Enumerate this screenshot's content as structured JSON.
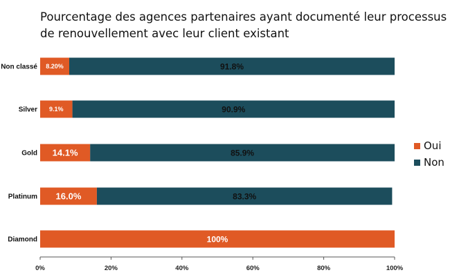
{
  "chart_data": {
    "type": "bar",
    "orientation": "horizontal",
    "stacked": true,
    "title_lines": [
      "Pourcentage des agences partenaires ayant documenté leur processus",
      "de renouvellement avec leur client existant"
    ],
    "categories": [
      "Non classé",
      "Silver",
      "Gold",
      "Platinum",
      "Diamond"
    ],
    "series": [
      {
        "name": "Oui",
        "color": "#e05a25",
        "values": [
          8.2,
          9.1,
          14.1,
          16.0,
          100
        ],
        "labels": [
          "8.20%",
          "9.1%",
          "14.1%",
          "16.0%",
          "100%"
        ]
      },
      {
        "name": "Non",
        "color": "#1c4d5c",
        "values": [
          91.8,
          90.9,
          85.9,
          83.3,
          0
        ],
        "labels": [
          "91.8%",
          "90.9%",
          "85.9%",
          "83.3%",
          ""
        ]
      }
    ],
    "xlim": [
      0,
      100
    ],
    "xticks": [
      "0%",
      "20%",
      "40%",
      "60%",
      "80%",
      "100%"
    ],
    "xlabel": "",
    "ylabel": "",
    "legend_position": "right",
    "grid": false
  }
}
